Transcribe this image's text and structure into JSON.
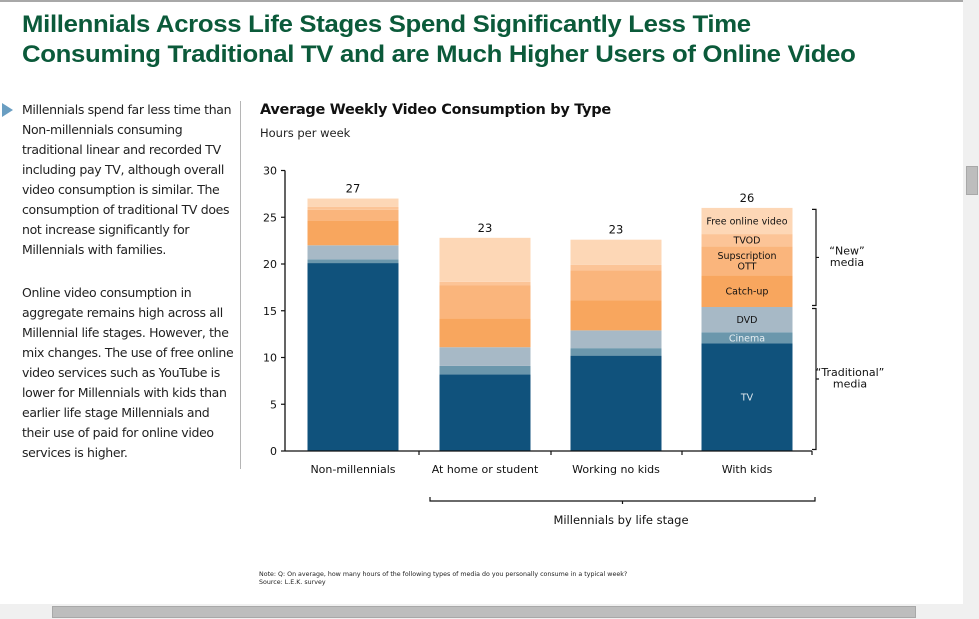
{
  "page": {
    "title_lines": [
      "Millennials Across Life Stages Spend Significantly Less Time",
      "Consuming Traditional TV and are Much Higher Users of Online Video"
    ],
    "title_color": "#0b5a3a",
    "bullet_icon": "triangle-right",
    "paragraphs": [
      "Millennials spend far less time than Non-millennials consuming traditional linear and recorded TV including pay TV, although overall video consumption is similar. The consumption of traditional TV does not increase significantly for Millennials with families.",
      "Online video consumption in aggregate remains high across all Millennial life stages. However, the mix changes. The use of free online video services such as YouTube is lower for Millennials with kids than earlier life stage Millennials and their use of paid for online video services is higher."
    ],
    "note_lines": [
      "Note: Q: On average, how many hours of the following types of media do you personally consume in a typical week?",
      "Source: L.E.K. survey"
    ]
  },
  "chart_data": {
    "type": "bar",
    "stacked": true,
    "title": "Average Weekly Video Consumption by Type",
    "subtitle": "Hours per week",
    "xlabel": "",
    "ylabel": "Hours per week",
    "ylim": [
      0,
      30
    ],
    "yticks": [
      0,
      5,
      10,
      15,
      20,
      25,
      30
    ],
    "grid": false,
    "categories": [
      "Non-millennials",
      "At home or student",
      "Working no kids",
      "With kids"
    ],
    "totals": [
      27,
      23,
      23,
      26
    ],
    "series": [
      {
        "name": "TV",
        "label": "TV",
        "color": "#10527c",
        "text_color": "#dfe8ef",
        "values": [
          20.1,
          8.2,
          10.2,
          11.5
        ]
      },
      {
        "name": "Cinema",
        "label": "Cinema",
        "color": "#6b97ac",
        "text_color": "#e6eef2",
        "values": [
          0.4,
          0.9,
          0.8,
          1.2
        ]
      },
      {
        "name": "DVD",
        "label": "DVD",
        "color": "#a7b9c6",
        "text_color": "#111111",
        "values": [
          1.5,
          2.0,
          1.9,
          2.7
        ]
      },
      {
        "name": "Catch-up",
        "label": "Catch-up",
        "color": "#f8a65e",
        "text_color": "#111111",
        "values": [
          2.6,
          3.1,
          3.2,
          3.4
        ]
      },
      {
        "name": "Supscription OTT",
        "label": "Supscription\nOTT",
        "color": "#fab57c",
        "text_color": "#111111",
        "values": [
          1.2,
          3.5,
          3.2,
          3.1
        ]
      },
      {
        "name": "TVOD",
        "label": "TVOD",
        "color": "#fcc497",
        "text_color": "#111111",
        "values": [
          0.3,
          0.4,
          0.6,
          1.3
        ]
      },
      {
        "name": "Free online video",
        "label": "Free online video",
        "color": "#fdd7b6",
        "text_color": "#111111",
        "values": [
          0.9,
          4.7,
          2.7,
          2.8
        ]
      }
    ],
    "segment_labels_on_category": "With kids",
    "group_bracket": {
      "label": "Millennials by life stage",
      "categories": [
        "At home or student",
        "Working no kids",
        "With kids"
      ]
    },
    "annotations": [
      {
        "text_lines": [
          "“New”",
          "media"
        ],
        "series": [
          "Catch-up",
          "Supscription OTT",
          "TVOD",
          "Free online video"
        ]
      },
      {
        "text_lines": [
          "“Traditional”",
          "media"
        ],
        "series": [
          "TV",
          "Cinema",
          "DVD"
        ]
      }
    ]
  }
}
